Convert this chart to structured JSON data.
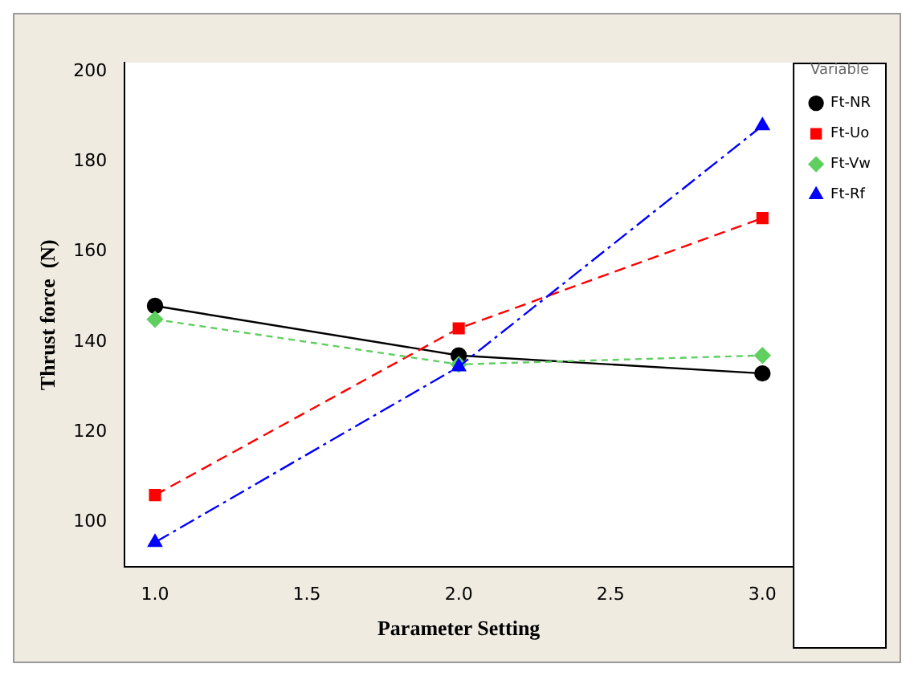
{
  "chart_data": {
    "type": "line",
    "xlabel": "Parameter Setting",
    "ylabel": "Thrust force  (N)",
    "legend_title": "Variable",
    "legend": "right",
    "grid": false,
    "x": [
      1,
      2,
      3
    ],
    "xlim": [
      0.9,
      3.1
    ],
    "xticks": [
      {
        "value": 1,
        "label": "1.0"
      },
      {
        "value": 1.5,
        "label": "1.5"
      },
      {
        "value": 2,
        "label": "2.0"
      },
      {
        "value": 2.5,
        "label": "2.5"
      },
      {
        "value": 3,
        "label": "3.0"
      }
    ],
    "ylim": [
      90,
      202
    ],
    "yticks": [
      100,
      120,
      140,
      160,
      180,
      200
    ],
    "series": [
      {
        "name": "Ft-NR",
        "color": "#000000",
        "values": [
          148,
          137,
          133
        ],
        "marker": "circle",
        "line_style": "solid"
      },
      {
        "name": "Ft-Uo",
        "color": "#ff0000",
        "values": [
          106,
          143,
          167.5
        ],
        "marker": "square",
        "line_style": "dashed"
      },
      {
        "name": "Ft-Vw",
        "color": "#5fcf5f",
        "values": [
          145,
          135,
          137
        ],
        "marker": "diamond",
        "line_style": "dotted"
      },
      {
        "name": "Ft-Rf",
        "color": "#0000ff",
        "values": [
          95.5,
          134.5,
          188
        ],
        "marker": "triangle",
        "line_style": "dashdot"
      }
    ]
  }
}
